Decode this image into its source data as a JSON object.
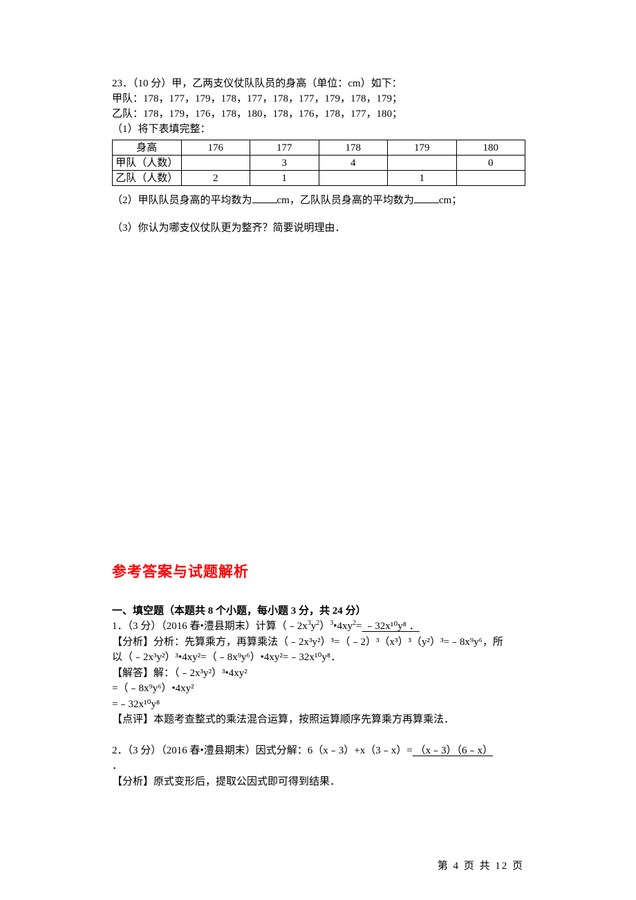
{
  "q23": {
    "stem": "23．（10 分）甲，乙两支仪仗队队员的身高（单位：cm）如下：",
    "team_a": "甲队：178，177，179，178，177，178，177，179，178，179；",
    "team_b": "乙队：178，179，176，178，180，178，176，178，177，180；",
    "sub1": "（1）将下表填完整：",
    "table": {
      "col_hdr": "身高",
      "cols": [
        "176",
        "177",
        "178",
        "179",
        "180"
      ],
      "row_a_hdr": "甲队（人数）",
      "row_a": [
        "",
        "3",
        "4",
        "",
        "0"
      ],
      "row_b_hdr": "乙队（人数）",
      "row_b": [
        "2",
        "1",
        "",
        "1",
        ""
      ]
    },
    "sub2_a": "（2）甲队队员身高的平均数为",
    "sub2_b": "cm，乙队队员身高的平均数为",
    "sub2_c": "cm；",
    "sub3": "（3）你认为哪支仪仗队更为整齐？简要说明理由．"
  },
  "ans_title": "参考答案与试题解析",
  "sec1_hdr": "一、填空题（本题共 8 个小题，每小题 3 分，共 24 分）",
  "a1": {
    "l1a": "1．（3 分）（2016 春•澧县期末）计算（﹣2x",
    "l1b": "•4xy",
    "l1c": "=",
    "ans": " ﹣32x¹⁰y⁸ ．",
    "analysis_a": "【分析】分析：先算乘方，再算乘法（﹣2x³y²）³=（﹣2）³（x³）³（y²）³=﹣8x⁹y⁶，所",
    "analysis_b": "以（﹣2x³y²）³•4xy²=（﹣8x⁹y⁶）•4xy²=﹣32x¹⁰y⁸．",
    "solve_hdr": "【解答】解：（﹣2x³y²）³•4xy²",
    "solve_l1": "=（﹣8x⁹y⁶）•4xy²",
    "solve_l2": "=﹣32x¹⁰y⁸",
    "review": "【点评】本题考查整式的乘法混合运算，按照运算顺序先算乘方再算乘法．"
  },
  "a2": {
    "stem_a": "2．（3 分）（2016 春•澧县期末）因式分解：6（x﹣3）+x（3﹣x）=",
    "ans": " （x﹣3）（6﹣x） ",
    "period": "．",
    "analysis": "【分析】原式变形后，提取公因式即可得到结果．"
  },
  "footer": "第 4 页 共 12 页"
}
